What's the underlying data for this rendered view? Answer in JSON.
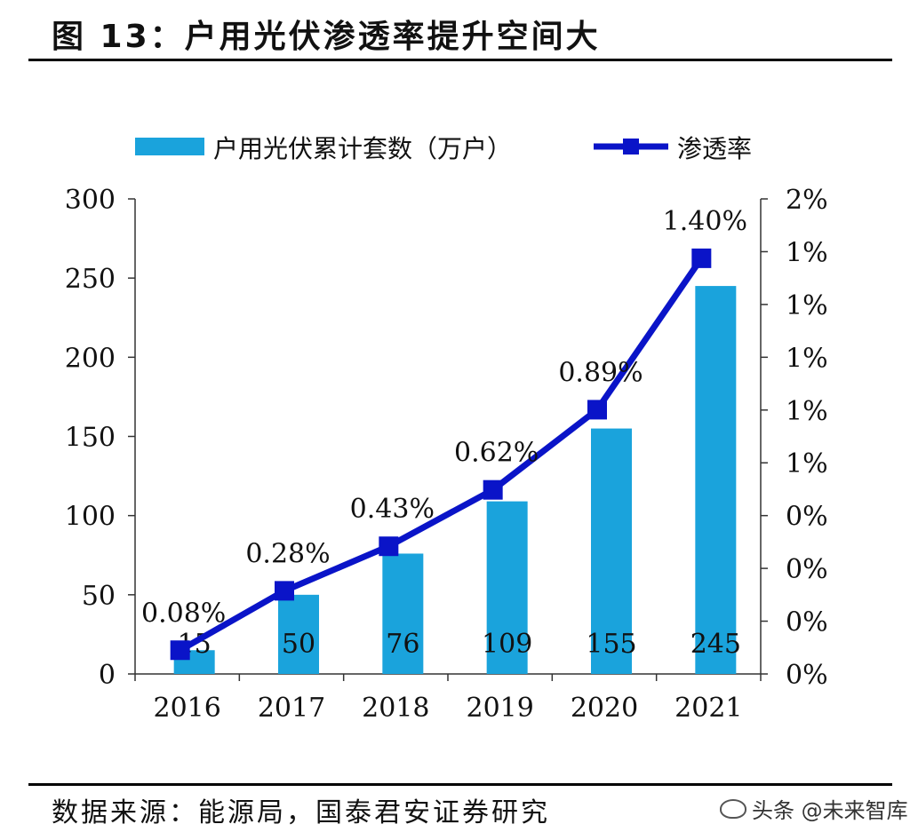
{
  "header": {
    "title": "图 13：户用光伏渗透率提升空间大"
  },
  "footer": {
    "source": "数据来源：能源局，国泰君安证券研究",
    "watermark": "头条 @未来智库"
  },
  "colors": {
    "bar": "#1aa3dc",
    "line": "#0a14c8",
    "axis": "#333333"
  },
  "chart_data": {
    "type": "bar",
    "title": "户用光伏渗透率提升空间大",
    "categories": [
      "2016",
      "2017",
      "2018",
      "2019",
      "2020",
      "2021"
    ],
    "series": [
      {
        "name": "户用光伏累计套数（万户）",
        "type": "bar",
        "axis": "left",
        "values": [
          15,
          50,
          76,
          109,
          155,
          245
        ],
        "labels": [
          "15",
          "50",
          "76",
          "109",
          "155",
          "245"
        ]
      },
      {
        "name": "渗透率",
        "type": "line",
        "axis": "right",
        "values": [
          0.08,
          0.28,
          0.43,
          0.62,
          0.89,
          1.4
        ],
        "labels": [
          "0.08%",
          "0.28%",
          "0.43%",
          "0.62%",
          "0.89%",
          "1.40%"
        ]
      }
    ],
    "y_left": {
      "min": 0,
      "max": 300,
      "ticks": [
        "0",
        "50",
        "100",
        "150",
        "200",
        "250",
        "300"
      ]
    },
    "y_right": {
      "min": 0,
      "max": 1.6,
      "ticks": [
        "0%",
        "0%",
        "0%",
        "0%",
        "1%",
        "1%",
        "1%",
        "1%",
        "1%",
        "2%"
      ]
    },
    "legend": "top",
    "grid": false,
    "xlabel": "",
    "ylabel": ""
  }
}
